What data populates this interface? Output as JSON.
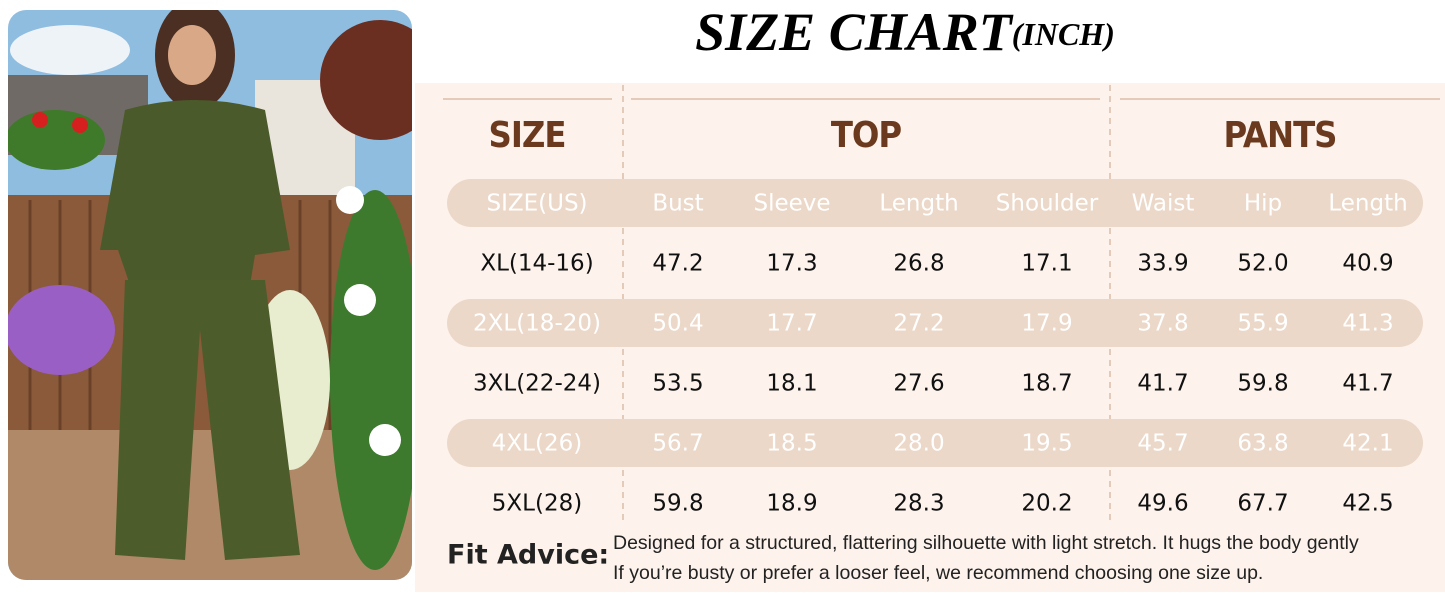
{
  "header": {
    "title": "SIZE CHART",
    "unit": "(INCH)"
  },
  "table": {
    "groups": [
      "SIZE",
      "TOP",
      "PANTS"
    ],
    "columns": [
      "SIZE(US)",
      "Bust",
      "Sleeve",
      "Length",
      "Shoulder",
      "Waist",
      "Hip",
      "Length"
    ],
    "rows": [
      [
        "XL(14-16)",
        "47.2",
        "17.3",
        "26.8",
        "17.1",
        "33.9",
        "52.0",
        "40.9"
      ],
      [
        "2XL(18-20)",
        "50.4",
        "17.7",
        "27.2",
        "17.9",
        "37.8",
        "55.9",
        "41.3"
      ],
      [
        "3XL(22-24)",
        "53.5",
        "18.1",
        "27.6",
        "18.7",
        "41.7",
        "59.8",
        "41.7"
      ],
      [
        "4XL(26)",
        "56.7",
        "18.5",
        "28.0",
        "19.5",
        "45.7",
        "63.8",
        "42.1"
      ],
      [
        "5XL(28)",
        "59.8",
        "18.9",
        "28.3",
        "20.2",
        "49.6",
        "67.7",
        "42.5"
      ]
    ]
  },
  "fit_advice": {
    "label": "Fit Advice:",
    "lines": [
      "Designed for a structured, flattering silhouette with light stretch. It hugs the body gently",
      "If you’re busty or prefer a looser feel, we recommend choosing one size up."
    ]
  }
}
